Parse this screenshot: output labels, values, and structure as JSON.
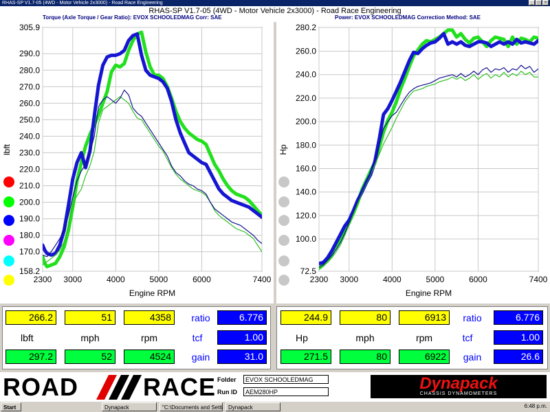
{
  "window": {
    "title": "RHAS-SP V1.7-05  (4WD - Motor Vehicle 2x3000) - Road Race Engineering"
  },
  "header": {
    "title": "RHAS-SP V1.7-05   (4WD - Motor Vehicle 2x3000) - Road Race Engineering",
    "left_info": "Torque (Axle Torque / Gear Ratio): EVOX SCHOOLEDMAG      Corr: SAE",
    "right_info": "Power: EVOX SCHOOLEDMAG      Correction Method: SAE"
  },
  "colors": {
    "green": "#22e01e",
    "blue": "#1515d2",
    "thin_green": "#30c020",
    "thin_blue": "#101090"
  },
  "chart_data": [
    {
      "type": "line",
      "name": "torque",
      "xlabel": "Engine RPM",
      "ylabel": "lbft",
      "xlim": [
        2300,
        7400
      ],
      "ylim": [
        158.2,
        305.9
      ],
      "x_ticks": [
        "2300",
        "3000",
        "4000",
        "5000",
        "6000",
        "7400"
      ],
      "y_ticks": [
        "305.9",
        "290.0",
        "280.0",
        "270.0",
        "260.0",
        "250.0",
        "240.0",
        "230.0",
        "220.0",
        "210.0",
        "200.0",
        "190.0",
        "180.0",
        "170.0",
        "158.2"
      ],
      "grid": true,
      "series": [
        {
          "color": "green",
          "width": 5,
          "x": [
            2300,
            2350,
            2400,
            2500,
            2600,
            2700,
            2800,
            2900,
            3000,
            3100,
            3200,
            3300,
            3400,
            3500,
            3600,
            3700,
            3800,
            3900,
            4000,
            4100,
            4200,
            4300,
            4400,
            4500,
            4600,
            4700,
            4800,
            4900,
            5000,
            5100,
            5200,
            5300,
            5400,
            5500,
            5600,
            5700,
            5800,
            5900,
            6000,
            6100,
            6200,
            6300,
            6400,
            6500,
            6600,
            6700,
            6800,
            6900,
            7000,
            7100,
            7200,
            7300,
            7400
          ],
          "y": [
            167,
            163,
            161,
            162,
            163,
            167,
            173,
            183,
            197,
            213,
            224,
            234,
            241,
            247,
            253,
            260,
            267,
            279,
            283,
            282,
            284,
            292,
            298,
            302,
            303,
            291,
            282,
            277,
            277,
            275,
            270,
            263,
            255,
            249,
            245,
            242,
            240,
            238,
            237,
            235,
            229,
            223,
            219,
            214,
            210,
            207,
            205,
            204,
            203,
            201,
            198,
            195,
            192
          ]
        },
        {
          "color": "blue",
          "width": 5,
          "x": [
            2300,
            2350,
            2400,
            2500,
            2600,
            2700,
            2800,
            2900,
            3000,
            3100,
            3200,
            3300,
            3400,
            3500,
            3600,
            3700,
            3800,
            3900,
            4000,
            4100,
            4200,
            4300,
            4400,
            4500,
            4600,
            4700,
            4800,
            4900,
            5000,
            5100,
            5200,
            5300,
            5400,
            5500,
            5600,
            5700,
            5800,
            5900,
            6000,
            6100,
            6200,
            6300,
            6400,
            6500,
            6600,
            6700,
            6800,
            6900,
            7000,
            7100,
            7200,
            7300,
            7400
          ],
          "y": [
            174,
            171,
            169,
            168,
            169,
            174,
            183,
            198,
            214,
            224,
            230,
            221,
            231,
            252,
            271,
            283,
            288,
            289,
            289,
            290,
            292,
            298,
            301,
            302,
            289,
            280,
            277,
            276,
            275,
            273,
            269,
            261,
            250,
            242,
            236,
            230,
            228,
            226,
            224,
            223,
            218,
            213,
            208,
            205,
            203,
            201,
            200,
            199,
            198,
            197,
            195,
            193,
            191
          ]
        },
        {
          "color": "thin_green",
          "width": 1.2,
          "x": [
            2300,
            2400,
            2500,
            2600,
            2700,
            2800,
            2900,
            3000,
            3100,
            3200,
            3300,
            3400,
            3500,
            3600,
            3700,
            3800,
            3900,
            4000,
            4100,
            4200,
            4300,
            4400,
            4500,
            4600,
            4700,
            4800,
            4900,
            5000,
            5100,
            5200,
            5300,
            5400,
            5500,
            5600,
            5700,
            5800,
            5900,
            6000,
            6100,
            6200,
            6300,
            6400,
            6500,
            6600,
            6700,
            6800,
            6900,
            7000,
            7100,
            7200,
            7300,
            7400
          ],
          "y": [
            162,
            164,
            166,
            168,
            171,
            176,
            185,
            199,
            204,
            208,
            216,
            222,
            231,
            248,
            256,
            258,
            260,
            262,
            264,
            262,
            260,
            255,
            251,
            250,
            246,
            242,
            238,
            234,
            231,
            226,
            221,
            217,
            214,
            212,
            210,
            208,
            207,
            206,
            204,
            200,
            195,
            192,
            190,
            188,
            186,
            184,
            183,
            182,
            180,
            178,
            174,
            170
          ]
        },
        {
          "color": "thin_blue",
          "width": 1.2,
          "x": [
            2300,
            2400,
            2500,
            2600,
            2700,
            2800,
            2900,
            3000,
            3100,
            3200,
            3300,
            3400,
            3500,
            3600,
            3700,
            3800,
            3900,
            4000,
            4100,
            4200,
            4300,
            4400,
            4500,
            4600,
            4700,
            4800,
            4900,
            5000,
            5100,
            5200,
            5300,
            5400,
            5500,
            5600,
            5700,
            5800,
            5900,
            6000,
            6100,
            6200,
            6300,
            6400,
            6500,
            6600,
            6700,
            6800,
            6900,
            7000,
            7100,
            7200,
            7300,
            7400
          ],
          "y": [
            168,
            167,
            170,
            174,
            178,
            183,
            192,
            203,
            213,
            219,
            223,
            230,
            240,
            258,
            262,
            264,
            262,
            260,
            263,
            268,
            265,
            257,
            254,
            252,
            248,
            244,
            240,
            236,
            232,
            228,
            222,
            218,
            216,
            213,
            211,
            210,
            208,
            207,
            205,
            200,
            196,
            194,
            192,
            190,
            188,
            187,
            186,
            184,
            182,
            180,
            177,
            175
          ]
        }
      ]
    },
    {
      "type": "line",
      "name": "power",
      "xlabel": "Engine RPM",
      "ylabel": "Hp",
      "xlim": [
        2300,
        7400
      ],
      "ylim": [
        72.5,
        280.2
      ],
      "x_ticks": [
        "2300",
        "3000",
        "4000",
        "5000",
        "6000",
        "7400"
      ],
      "y_ticks": [
        "280.2",
        "260.0",
        "240.0",
        "220.0",
        "200.0",
        "180.0",
        "160.0",
        "140.0",
        "120.0",
        "100.0",
        "72.5"
      ],
      "grid": true,
      "series": [
        {
          "color": "green",
          "width": 5,
          "x": [
            2300,
            2400,
            2500,
            2600,
            2700,
            2800,
            2900,
            3000,
            3100,
            3200,
            3300,
            3400,
            3500,
            3600,
            3700,
            3800,
            3900,
            4000,
            4100,
            4200,
            4300,
            4400,
            4500,
            4600,
            4700,
            4800,
            4900,
            5000,
            5100,
            5200,
            5300,
            5400,
            5500,
            5600,
            5700,
            5800,
            5900,
            6000,
            6100,
            6200,
            6300,
            6400,
            6500,
            6600,
            6700,
            6800,
            6900,
            7000,
            7100,
            7200,
            7300,
            7400
          ],
          "y": [
            75,
            78,
            82,
            87,
            94,
            100,
            107,
            114,
            122,
            131,
            142,
            150,
            158,
            165,
            178,
            191,
            201,
            208,
            217,
            228,
            237,
            247,
            256,
            261,
            266,
            269,
            268,
            270,
            272,
            275,
            278,
            278,
            272,
            275,
            270,
            267,
            271,
            272,
            268,
            264,
            269,
            272,
            271,
            270,
            264,
            272,
            266,
            271,
            270,
            268,
            272,
            271
          ]
        },
        {
          "color": "blue",
          "width": 5,
          "x": [
            2300,
            2400,
            2500,
            2600,
            2700,
            2800,
            2900,
            3000,
            3100,
            3200,
            3300,
            3400,
            3500,
            3600,
            3700,
            3800,
            3900,
            4000,
            4100,
            4200,
            4300,
            4400,
            4500,
            4600,
            4700,
            4800,
            4900,
            5000,
            5100,
            5200,
            5300,
            5400,
            5500,
            5600,
            5700,
            5800,
            5900,
            6000,
            6100,
            6200,
            6300,
            6400,
            6500,
            6600,
            6700,
            6800,
            6900,
            7000,
            7100,
            7200,
            7300,
            7400
          ],
          "y": [
            79,
            80,
            84,
            90,
            97,
            104,
            111,
            116,
            124,
            133,
            140,
            148,
            155,
            166,
            185,
            206,
            211,
            218,
            226,
            234,
            243,
            252,
            259,
            258,
            262,
            265,
            267,
            268,
            271,
            275,
            266,
            268,
            266,
            268,
            265,
            264,
            266,
            268,
            268,
            267,
            264,
            266,
            268,
            266,
            268,
            266,
            270,
            267,
            268,
            267,
            266,
            269
          ]
        },
        {
          "color": "thin_green",
          "width": 1.2,
          "x": [
            2300,
            2400,
            2500,
            2600,
            2700,
            2800,
            2900,
            3000,
            3100,
            3200,
            3300,
            3400,
            3500,
            3600,
            3700,
            3800,
            3900,
            4000,
            4100,
            4200,
            4300,
            4400,
            4500,
            4600,
            4700,
            4800,
            4900,
            5000,
            5100,
            5200,
            5300,
            5400,
            5500,
            5600,
            5700,
            5800,
            5900,
            6000,
            6100,
            6200,
            6300,
            6400,
            6500,
            6600,
            6700,
            6800,
            6900,
            7000,
            7100,
            7200,
            7300,
            7400
          ],
          "y": [
            75,
            77,
            80,
            84,
            89,
            95,
            103,
            112,
            121,
            130,
            139,
            147,
            155,
            163,
            172,
            181,
            188,
            195,
            203,
            210,
            217,
            222,
            226,
            227,
            228,
            230,
            231,
            232,
            234,
            235,
            236,
            238,
            236,
            238,
            235,
            237,
            240,
            236,
            239,
            241,
            237,
            240,
            238,
            242,
            238,
            241,
            239,
            243,
            240,
            242,
            238,
            238
          ]
        },
        {
          "color": "thin_blue",
          "width": 1.2,
          "x": [
            2300,
            2400,
            2500,
            2600,
            2700,
            2800,
            2900,
            3000,
            3100,
            3200,
            3300,
            3400,
            3500,
            3600,
            3700,
            3800,
            3900,
            4000,
            4100,
            4200,
            4300,
            4400,
            4500,
            4600,
            4700,
            4800,
            4900,
            5000,
            5100,
            5200,
            5300,
            5400,
            5500,
            5600,
            5700,
            5800,
            5900,
            6000,
            6100,
            6200,
            6300,
            6400,
            6500,
            6600,
            6700,
            6800,
            6900,
            7000,
            7100,
            7200,
            7300,
            7400
          ],
          "y": [
            76,
            78,
            82,
            86,
            91,
            97,
            105,
            114,
            123,
            132,
            140,
            148,
            156,
            167,
            180,
            194,
            200,
            205,
            208,
            214,
            220,
            225,
            228,
            230,
            231,
            232,
            233,
            235,
            237,
            238,
            239,
            240,
            238,
            241,
            238,
            240,
            243,
            240,
            244,
            246,
            242,
            245,
            244,
            246,
            242,
            245,
            244,
            248,
            245,
            247,
            242,
            245
          ]
        }
      ]
    }
  ],
  "swatches": [
    "#ff0000",
    "#00ff00",
    "#0000ff",
    "#ff00ff",
    "#00ffff",
    "#ffff00"
  ],
  "readouts": {
    "left": {
      "row1": [
        "266.2",
        "51",
        "4358"
      ],
      "labels": [
        "lbft",
        "mph",
        "rpm"
      ],
      "row2": [
        "297.2",
        "52",
        "4524"
      ],
      "ratio_label": "ratio",
      "ratio": "6.776",
      "tcf_label": "tcf",
      "tcf": "1.00",
      "gain_label": "gain",
      "gain": "31.0"
    },
    "right": {
      "row1": [
        "244.9",
        "80",
        "6913"
      ],
      "labels": [
        "Hp",
        "mph",
        "rpm"
      ],
      "row2": [
        "271.5",
        "80",
        "6922"
      ],
      "ratio_label": "ratio",
      "ratio": "6.776",
      "tcf_label": "tcf",
      "tcf": "1.00",
      "gain_label": "gain",
      "gain": "26.6"
    }
  },
  "branding": {
    "road": "ROAD",
    "race": "RACE",
    "folder_label": "Folder",
    "folder_value": "EVOX SCHOOLEDMAG",
    "runid_label": "Run ID",
    "runid_value": "AEM280HP",
    "dynapack": "Dynapack",
    "dynapack_sub": "CHASSIS DYNAMOMETERS"
  },
  "taskbar": {
    "start": "Start",
    "items": [
      "Dynapack",
      "\"C:\\Documents and Setti...",
      "Dynapack"
    ],
    "clock": "6:48 p.m."
  }
}
